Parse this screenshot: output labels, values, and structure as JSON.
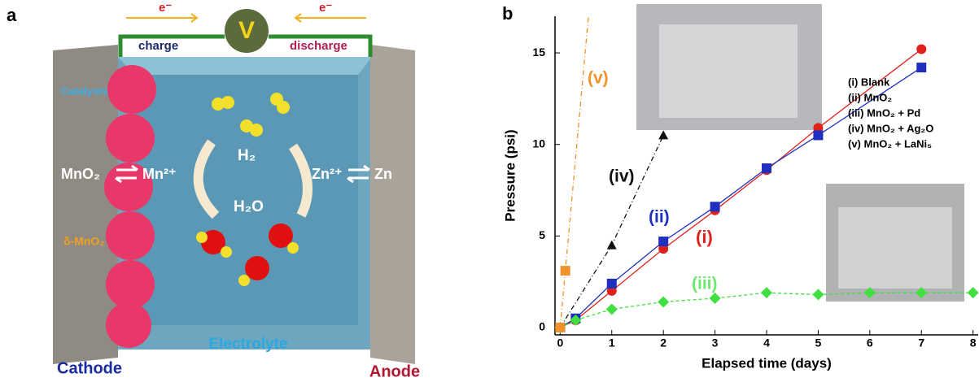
{
  "panel_a": {
    "label": "a",
    "electron_left": "e⁻",
    "electron_right": "e⁻",
    "meter": "V",
    "charge": "charge",
    "discharge": "discharge",
    "catalysts": "Catalysts",
    "cathode_species": "MnO₂",
    "cathode_ion": "Mn²⁺",
    "gas": "H₂",
    "water": "H₂O",
    "anode_ion": "Zn²⁺",
    "anode_species": "Zn",
    "delta": "δ-MnO₂",
    "electrolyte": "Electrolyte",
    "cathode": "Cathode",
    "anode": "Anode"
  },
  "chart_data": {
    "type": "line",
    "panel_label": "b",
    "xlabel": "Elapsed time (days)",
    "ylabel": "Pressure (psi)",
    "xlim": [
      -0.1,
      8.1
    ],
    "ylim": [
      -0.4,
      17
    ],
    "xticks": [
      0,
      1,
      2,
      3,
      4,
      5,
      6,
      7,
      8
    ],
    "yticks": [
      0,
      5,
      10,
      15
    ],
    "series": [
      {
        "name": "(i) Blank",
        "color": "#e0201b",
        "marker": "circle",
        "dash": "none",
        "x": [
          0,
          0.3,
          1,
          2,
          3,
          4,
          5,
          7
        ],
        "values": [
          0,
          0.4,
          2.0,
          4.3,
          6.4,
          8.6,
          10.9,
          15.2
        ]
      },
      {
        "name": "(ii) MnO₂",
        "color": "#1f2fbf",
        "marker": "square",
        "dash": "none",
        "x": [
          0,
          0.3,
          1,
          2,
          3,
          4,
          5,
          7
        ],
        "values": [
          0,
          0.5,
          2.4,
          4.7,
          6.6,
          8.7,
          10.5,
          14.2
        ]
      },
      {
        "name": "(iii) MnO₂ + Pd",
        "color": "#3fe03f",
        "marker": "diamond",
        "dash": "4 3",
        "x": [
          0,
          0.3,
          1,
          2,
          3,
          4,
          5,
          6,
          7,
          8
        ],
        "values": [
          0,
          0.4,
          1.0,
          1.4,
          1.6,
          1.9,
          1.8,
          1.9,
          1.9,
          1.9
        ]
      },
      {
        "name": "(iv) MnO₂ + Ag₂O",
        "color": "#111111",
        "marker": "triangle",
        "dash": "6 3 1 3",
        "x": [
          0,
          1,
          2
        ],
        "values": [
          0,
          4.5,
          10.5
        ]
      },
      {
        "name": "(v) MnO₂ + LaNi₅",
        "color": "#f0922b",
        "marker": "square",
        "dash": "6 3 1 3",
        "x": [
          0,
          0.1
        ],
        "values": [
          0,
          3.1
        ]
      }
    ],
    "annotations": [
      {
        "text": "(v)",
        "color": "#f0922b"
      },
      {
        "text": "(iv)",
        "color": "#111111"
      },
      {
        "text": "(ii)",
        "color": "#1f2fbf"
      },
      {
        "text": "(i)",
        "color": "#e0201b"
      },
      {
        "text": "(iii)",
        "color": "#6fe86f"
      }
    ]
  }
}
